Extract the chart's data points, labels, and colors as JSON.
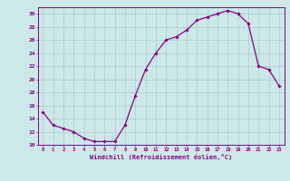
{
  "x": [
    0,
    1,
    2,
    3,
    4,
    5,
    6,
    7,
    8,
    9,
    10,
    11,
    12,
    13,
    14,
    15,
    16,
    17,
    18,
    19,
    20,
    21,
    22,
    23
  ],
  "y": [
    15,
    13,
    12.5,
    12,
    11,
    10.5,
    10.5,
    10.5,
    13,
    17.5,
    21.5,
    24,
    26,
    26.5,
    27.5,
    29,
    29.5,
    30,
    30.5,
    30,
    28.5,
    22,
    21.5,
    19
  ],
  "line_color": "#880088",
  "marker": "D",
  "marker_size": 1.8,
  "xlabel": "Windchill (Refroidissement éolien,°C)",
  "xlim": [
    -0.5,
    23.5
  ],
  "ylim": [
    10,
    31
  ],
  "yticks": [
    10,
    12,
    14,
    16,
    18,
    20,
    22,
    24,
    26,
    28,
    30
  ],
  "xticks": [
    0,
    1,
    2,
    3,
    4,
    5,
    6,
    7,
    8,
    9,
    10,
    11,
    12,
    13,
    14,
    15,
    16,
    17,
    18,
    19,
    20,
    21,
    22,
    23
  ],
  "bg_color": "#cce8e8",
  "grid_color": "#aacccc",
  "tick_color": "#880088",
  "xlabel_color": "#880088"
}
